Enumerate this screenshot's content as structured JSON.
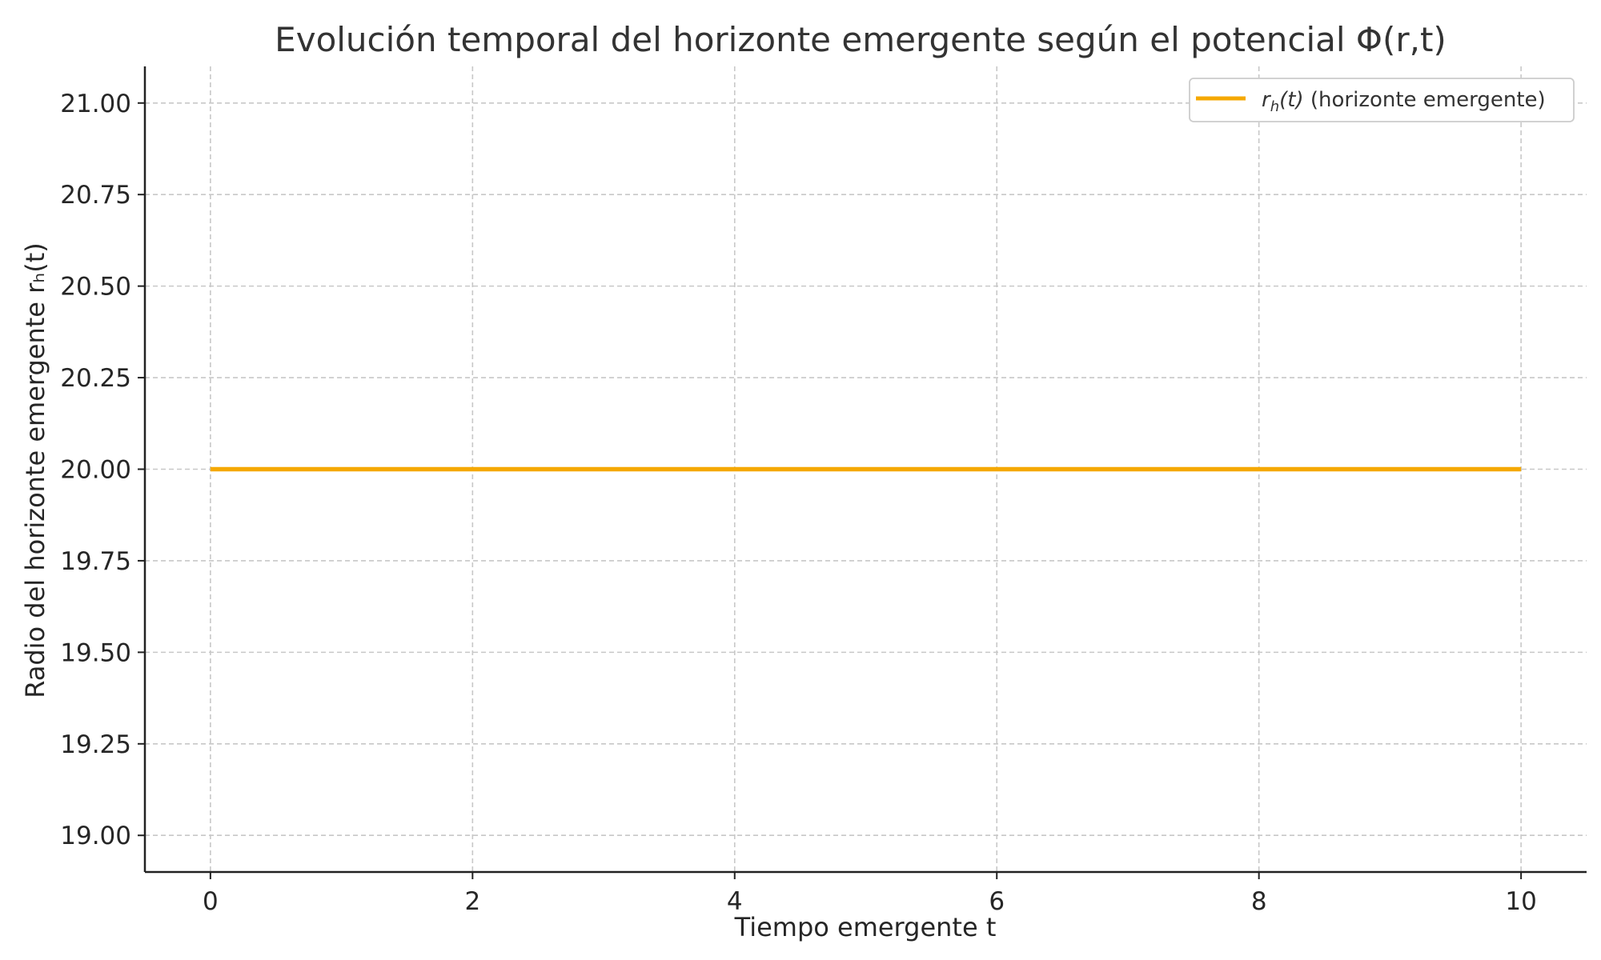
{
  "chart_data": {
    "type": "line",
    "title": "Evolución temporal del horizonte emergente según el potencial Φ(r,t)",
    "xlabel": "Tiempo emergente t",
    "ylabel": "Radio del horizonte emergente rₕ(t)",
    "xlim": [
      -0.5,
      10.5
    ],
    "ylim": [
      18.9,
      21.1
    ],
    "xticks": [
      0,
      2,
      4,
      6,
      8,
      10
    ],
    "xtick_labels": [
      "0",
      "2",
      "4",
      "6",
      "8",
      "10"
    ],
    "yticks": [
      19.0,
      19.25,
      19.5,
      19.75,
      20.0,
      20.25,
      20.5,
      20.75,
      21.0
    ],
    "ytick_labels": [
      "19.00",
      "19.25",
      "19.50",
      "19.75",
      "20.00",
      "20.25",
      "20.50",
      "20.75",
      "21.00"
    ],
    "grid": true,
    "legend_position": "top-right",
    "series": [
      {
        "name_parts": {
          "r": "r",
          "sub": "h",
          "arg": "(t)",
          "rest": " (horizonte emergente)"
        },
        "color": "#f5a800",
        "x": [
          0,
          10
        ],
        "y": [
          20.0,
          20.0
        ]
      }
    ]
  }
}
